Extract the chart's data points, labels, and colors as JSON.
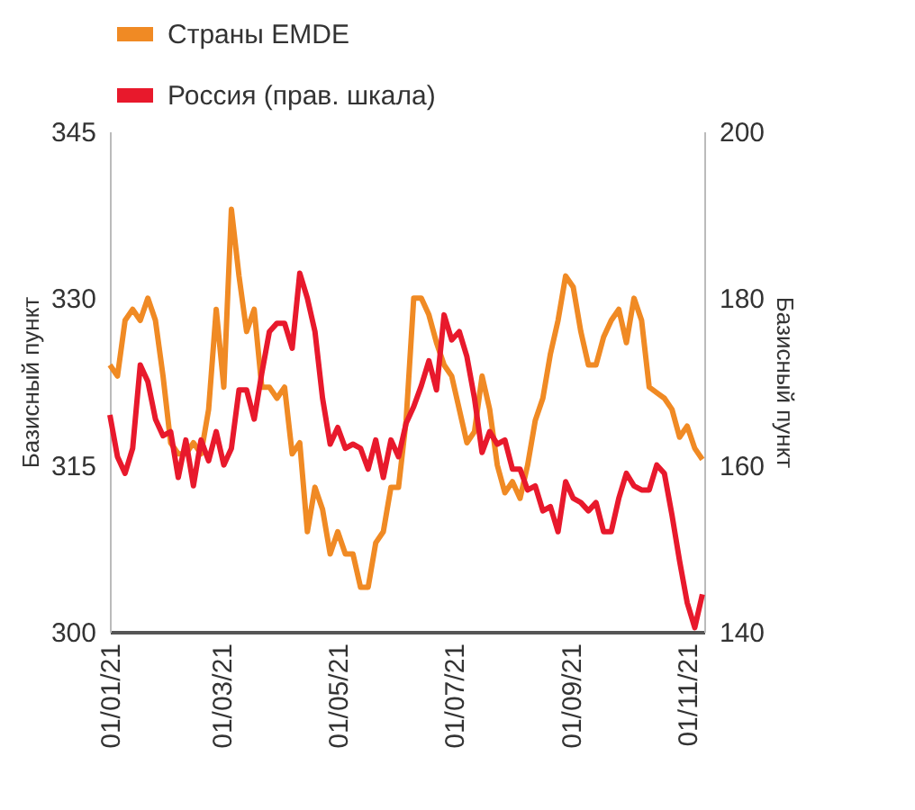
{
  "chart_data": {
    "type": "line",
    "ylabel": "Базисный пункт",
    "y2label": "Базисный пункт",
    "x": [
      "2021-01-01",
      "2021-01-05",
      "2021-01-09",
      "2021-01-13",
      "2021-01-17",
      "2021-01-21",
      "2021-01-25",
      "2021-01-29",
      "2021-02-02",
      "2021-02-06",
      "2021-02-10",
      "2021-02-14",
      "2021-02-18",
      "2021-02-22",
      "2021-02-26",
      "2021-03-02",
      "2021-03-06",
      "2021-03-10",
      "2021-03-14",
      "2021-03-18",
      "2021-03-22",
      "2021-03-26",
      "2021-03-30",
      "2021-04-03",
      "2021-04-07",
      "2021-04-11",
      "2021-04-15",
      "2021-04-19",
      "2021-04-23",
      "2021-04-27",
      "2021-05-01",
      "2021-05-05",
      "2021-05-09",
      "2021-05-13",
      "2021-05-17",
      "2021-05-21",
      "2021-05-25",
      "2021-05-29",
      "2021-06-02",
      "2021-06-06",
      "2021-06-10",
      "2021-06-14",
      "2021-06-18",
      "2021-06-22",
      "2021-06-26",
      "2021-06-30",
      "2021-07-04",
      "2021-07-08",
      "2021-07-12",
      "2021-07-16",
      "2021-07-20",
      "2021-07-24",
      "2021-07-28",
      "2021-08-01",
      "2021-08-05",
      "2021-08-09",
      "2021-08-13",
      "2021-08-17",
      "2021-08-21",
      "2021-08-25",
      "2021-08-29",
      "2021-09-02",
      "2021-09-06",
      "2021-09-10",
      "2021-09-14",
      "2021-09-18",
      "2021-09-22",
      "2021-09-26",
      "2021-09-30",
      "2021-10-04",
      "2021-10-08",
      "2021-10-12",
      "2021-10-16",
      "2021-10-20",
      "2021-10-24",
      "2021-10-28",
      "2021-11-01",
      "2021-11-05",
      "2021-11-09"
    ],
    "series": [
      {
        "name": "Страны EMDE",
        "color": "#f08a24",
        "values": [
          324,
          323,
          328,
          329,
          328,
          330,
          328,
          323,
          317,
          316,
          316,
          317,
          316,
          320,
          329,
          322,
          338,
          332,
          327,
          329,
          322,
          322,
          321,
          322,
          316,
          317,
          309,
          313,
          311,
          307,
          309,
          307,
          307,
          304,
          304,
          308,
          309,
          313,
          313,
          319,
          330,
          330,
          328.5,
          326,
          324,
          323,
          320,
          317,
          318,
          323,
          320,
          315,
          312.5,
          313.5,
          312,
          315,
          319,
          321,
          325,
          328,
          332,
          331,
          327,
          324,
          324,
          326.5,
          328,
          329,
          326,
          330,
          328,
          322,
          321.5,
          321,
          320,
          317.5,
          318.5,
          316.5,
          315.5
        ]
      },
      {
        "name": "Россия (прав. шкала)",
        "color": "#e8192c",
        "axis": "y2",
        "values": [
          166,
          161,
          159,
          162,
          172,
          170,
          165.5,
          163.5,
          164,
          158.5,
          163,
          157.5,
          163,
          160.5,
          164,
          160,
          162,
          169,
          169,
          165.5,
          171,
          176,
          177,
          177,
          174,
          183,
          180,
          176,
          168,
          162.5,
          164.5,
          162,
          162.5,
          162,
          159.5,
          163,
          158.5,
          163,
          161,
          165,
          167,
          169.5,
          172.5,
          169,
          178,
          175,
          176,
          173,
          168,
          161.5,
          164,
          162.5,
          163,
          159.5,
          159.5,
          157,
          157.5,
          154.5,
          155,
          152,
          158,
          156,
          155.5,
          154.5,
          155.5,
          152,
          152,
          156,
          159,
          157.5,
          157,
          157,
          160,
          159,
          154,
          148.5,
          143.5,
          140.5,
          144.5
        ]
      }
    ],
    "xlim": [
      "2021-01-01",
      "2021-11-10"
    ],
    "xticks": [
      {
        "value": "2021-01-01",
        "label": "01/01/21"
      },
      {
        "value": "2021-03-01",
        "label": "01/03/21"
      },
      {
        "value": "2021-05-01",
        "label": "01/05/21"
      },
      {
        "value": "2021-07-01",
        "label": "01/07/21"
      },
      {
        "value": "2021-09-01",
        "label": "01/09/21"
      },
      {
        "value": "2021-11-01",
        "label": "01/11/21"
      }
    ],
    "ylim": [
      300,
      345
    ],
    "yticks": [
      300,
      315,
      330,
      345
    ],
    "y2lim": [
      140,
      200
    ],
    "y2ticks": [
      140,
      160,
      180,
      200
    ],
    "legend": "top",
    "grid": false,
    "line_style": "solid",
    "marker": "none"
  }
}
